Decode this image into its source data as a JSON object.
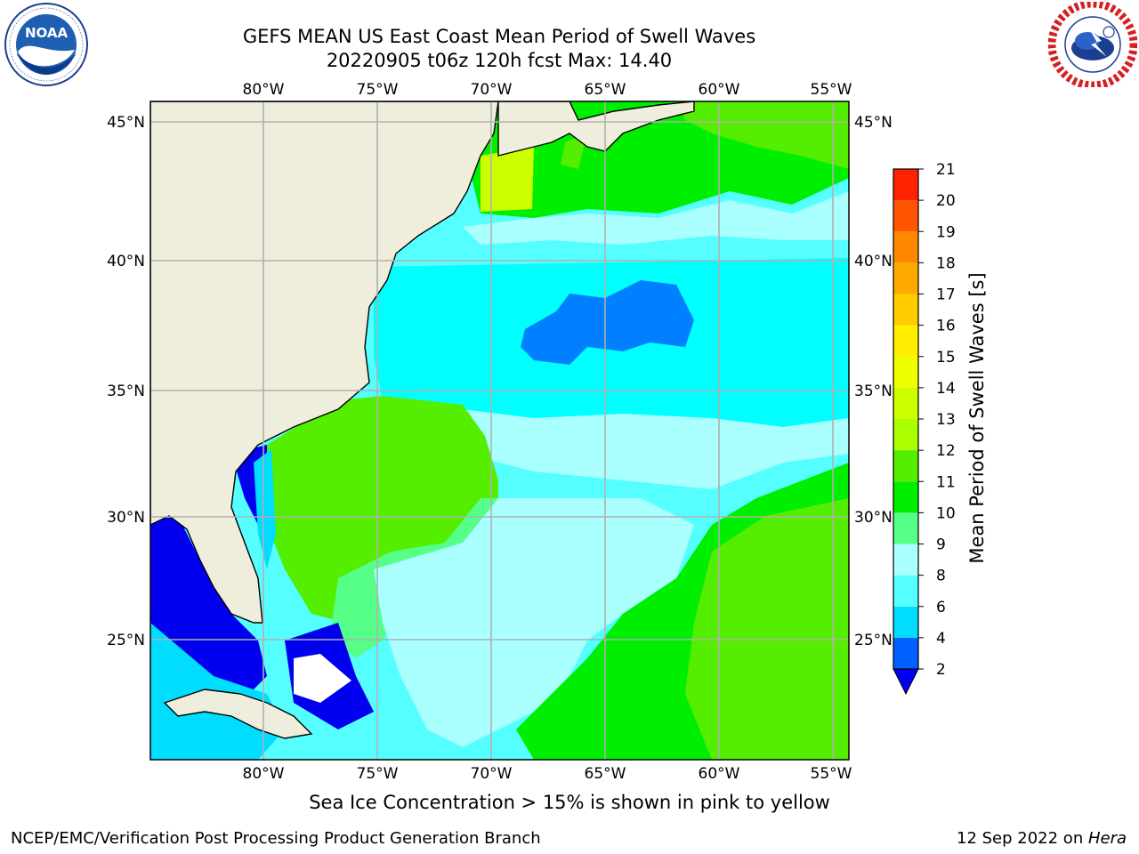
{
  "header": {
    "title_line1": "GEFS MEAN US East Coast Mean Period of Swell Waves",
    "title_line2": "20220905 t06z 120h fcst   Max: 14.40"
  },
  "logos": {
    "left": {
      "name": "noaa-logo",
      "text": "NOAA",
      "ring_text": "NATIONAL OCEANIC AND ATMOSPHERIC ADMINISTRATION · U.S. DEPARTMENT OF COMMERCE"
    },
    "right": {
      "name": "nws-logo",
      "ring_text": "NATIONAL WEATHER SERVICE"
    }
  },
  "map": {
    "lon_labels": [
      "80°W",
      "75°W",
      "70°W",
      "65°W",
      "60°W",
      "55°W"
    ],
    "lat_labels": [
      "45°N",
      "40°N",
      "35°N",
      "30°N",
      "25°N"
    ],
    "extent": {
      "lon_min": -85,
      "lon_max": -54.1,
      "lat_min": 20.5,
      "lat_max": 45.8
    },
    "colors": {
      "land": "#efeedc",
      "grid": "#b0b0b0",
      "coast": "#000000"
    }
  },
  "colorbar": {
    "label": "Mean Period of Swell Waves [s]",
    "ticks": [
      "2",
      "4",
      "6",
      "8",
      "9",
      "10",
      "11",
      "12",
      "13",
      "14",
      "15",
      "16",
      "17",
      "18",
      "19",
      "20",
      "21"
    ],
    "colors": [
      "#0060ff",
      "#00ddff",
      "#55ffff",
      "#aaffff",
      "#55ff88",
      "#00ee00",
      "#55ee00",
      "#aaff00",
      "#ccff00",
      "#eeff00",
      "#ffee00",
      "#ffcc00",
      "#ffaa00",
      "#ff8800",
      "#ff5500",
      "#ff2200"
    ],
    "under_color": "#0000ee"
  },
  "note": "Sea Ice Concentration > 15% is shown in pink to yellow",
  "footer": {
    "left": "NCEP/EMC/Verification Post Processing Product Generation Branch",
    "right_date": "12 Sep 2022 on ",
    "right_machine": "Hera"
  }
}
